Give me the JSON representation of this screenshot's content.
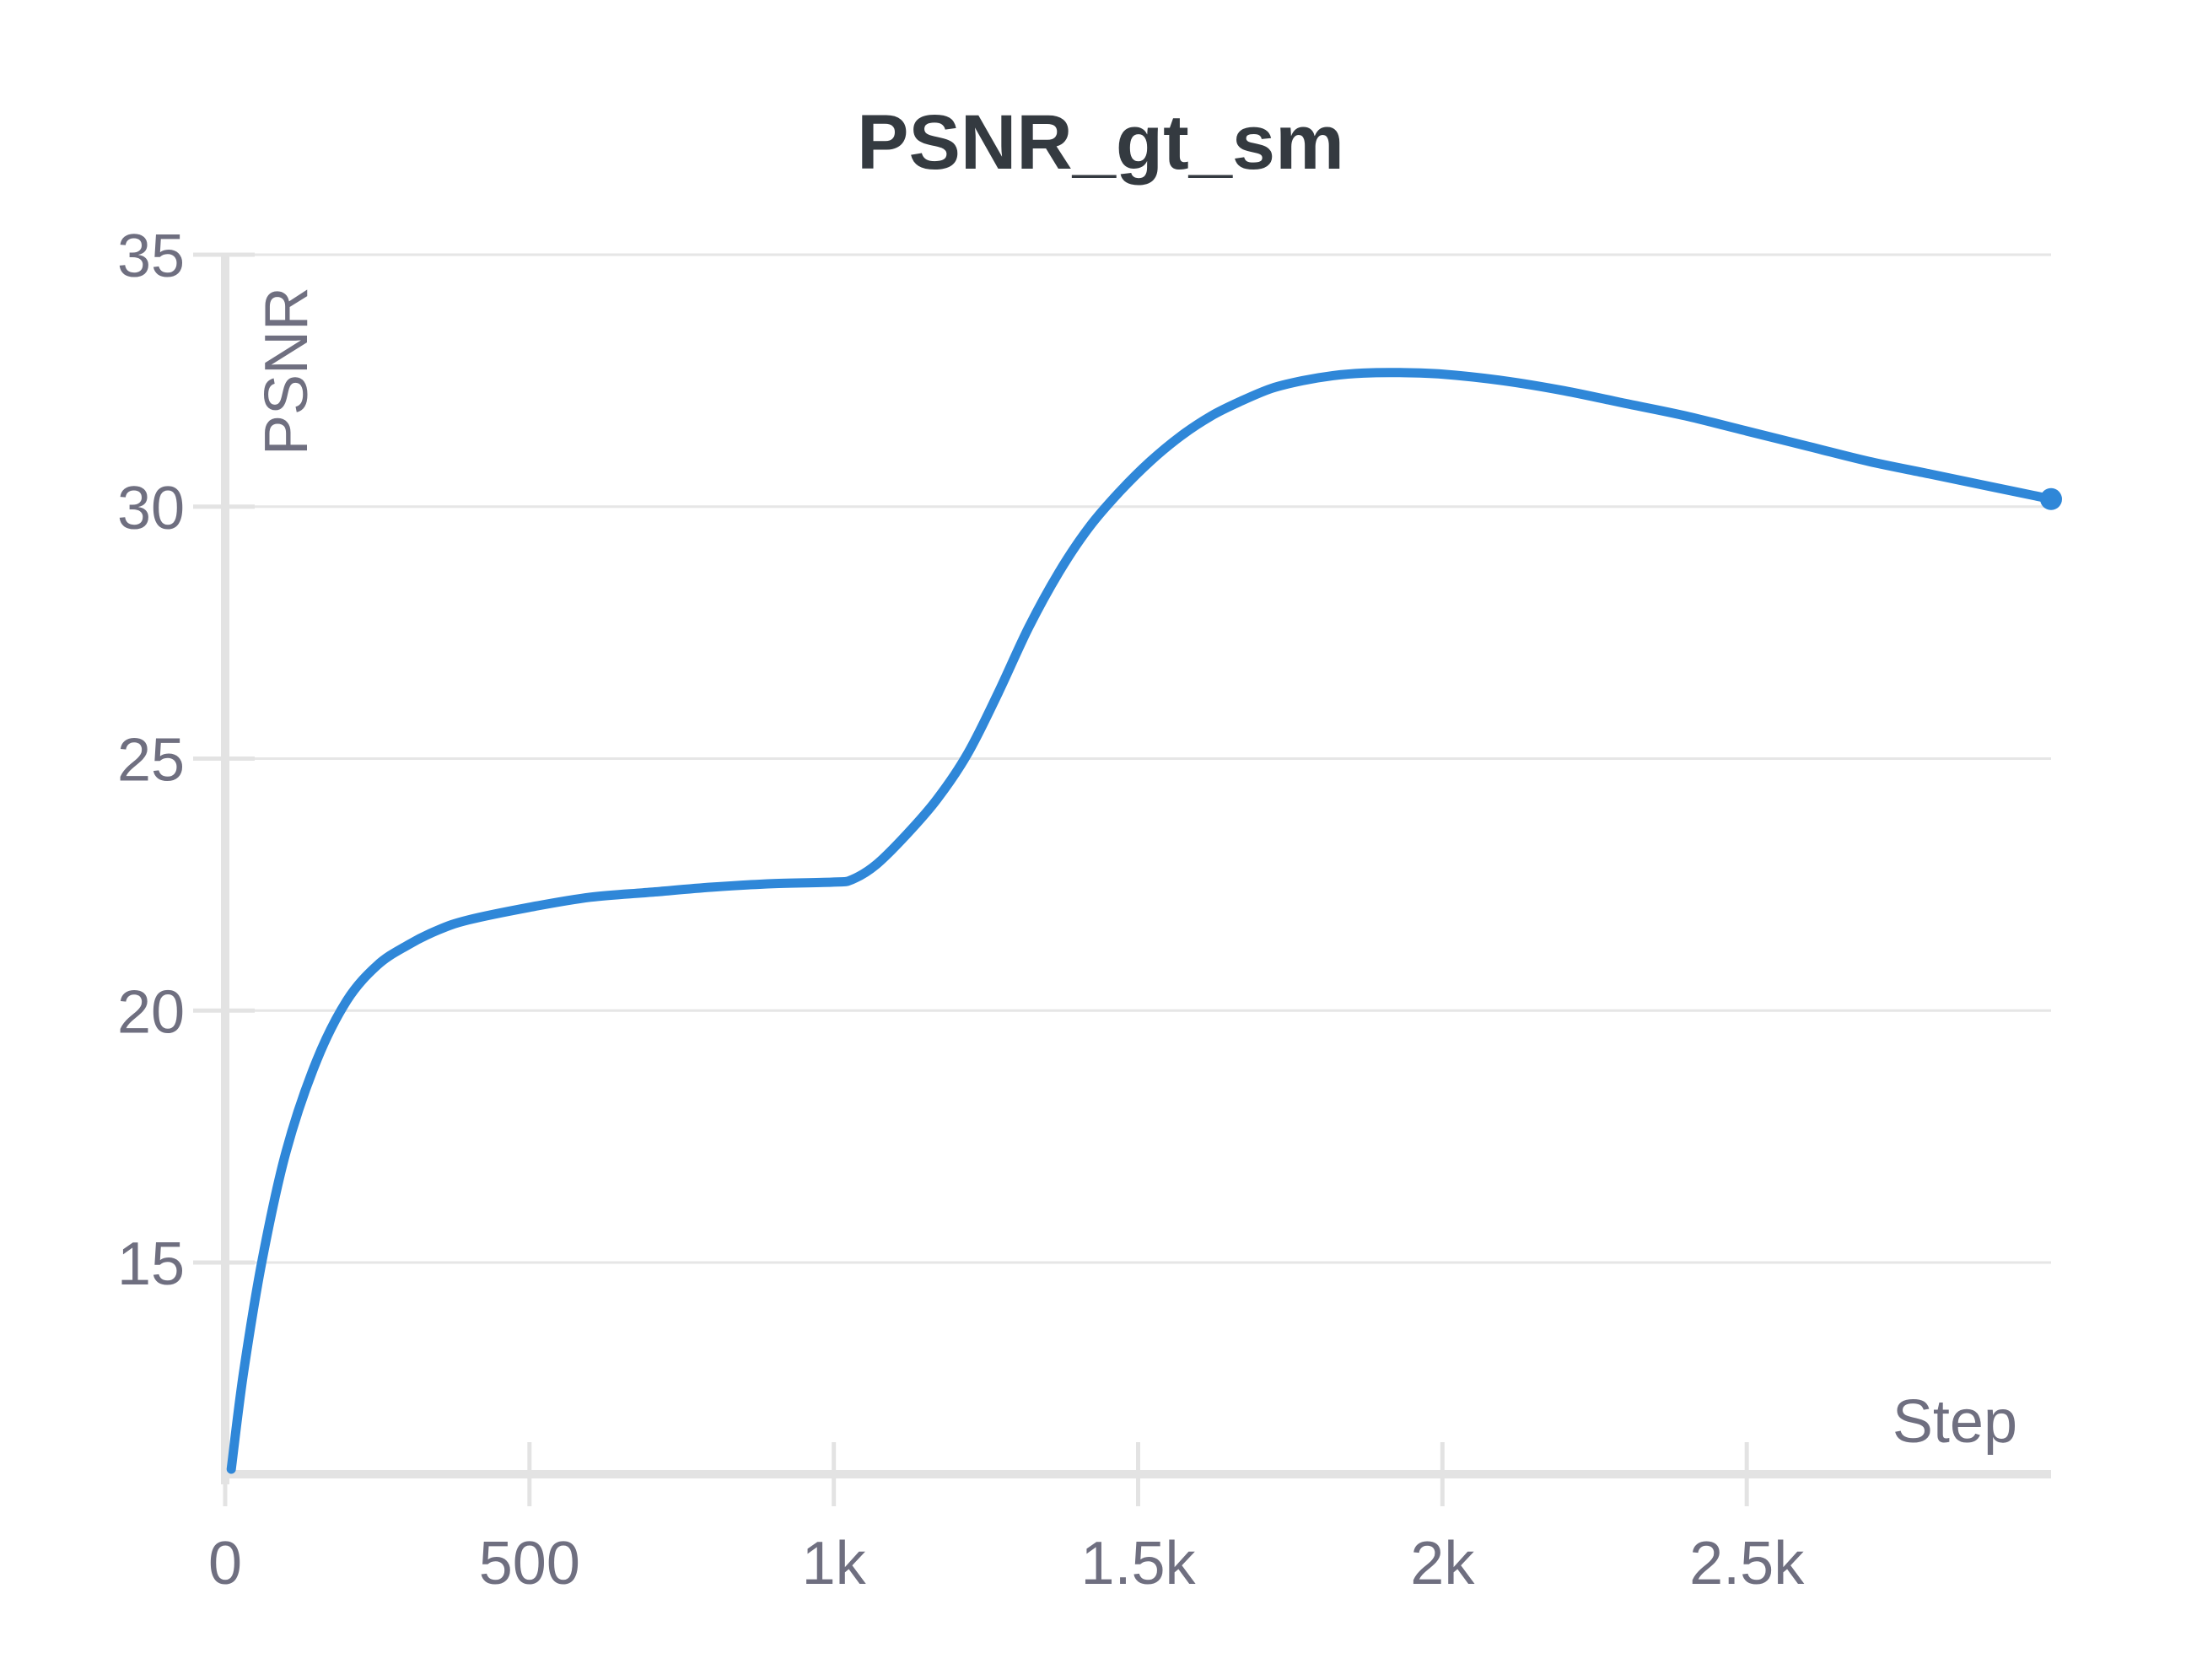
{
  "chart_data": {
    "type": "line",
    "title": "PSNR_gt_sm",
    "xlabel": "Step",
    "ylabel": "PSNR",
    "x_ticks": [
      {
        "value": 0,
        "label": "0"
      },
      {
        "value": 500,
        "label": "500"
      },
      {
        "value": 1000,
        "label": "1k"
      },
      {
        "value": 1500,
        "label": "1.5k"
      },
      {
        "value": 2000,
        "label": "2k"
      },
      {
        "value": 2500,
        "label": "2.5k"
      }
    ],
    "y_ticks": [
      {
        "value": 15,
        "label": "15"
      },
      {
        "value": 20,
        "label": "20"
      },
      {
        "value": 25,
        "label": "25"
      },
      {
        "value": 30,
        "label": "30"
      },
      {
        "value": 35,
        "label": "35"
      }
    ],
    "xlim": [
      0,
      3000
    ],
    "ylim": [
      10.8,
      35
    ],
    "grid": true,
    "series": [
      {
        "color": "#2f87d8",
        "x": [
          10,
          30,
          60,
          100,
          150,
          200,
          250,
          300,
          350,
          400,
          500,
          600,
          700,
          800,
          900,
          1000,
          1030,
          1070,
          1120,
          1170,
          1220,
          1270,
          1320,
          1370,
          1420,
          1470,
          1520,
          1570,
          1620,
          1670,
          1720,
          1770,
          1820,
          1870,
          1930,
          2000,
          2100,
          2200,
          2300,
          2400,
          2500,
          2600,
          2700,
          2800,
          2900,
          3000
        ],
        "y": [
          10.9,
          12.8,
          15.0,
          17.2,
          19.0,
          20.2,
          20.9,
          21.3,
          21.6,
          21.8,
          22.05,
          22.25,
          22.35,
          22.45,
          22.52,
          22.55,
          22.6,
          22.9,
          23.5,
          24.2,
          25.1,
          26.3,
          27.6,
          28.7,
          29.6,
          30.3,
          30.9,
          31.4,
          31.8,
          32.1,
          32.35,
          32.5,
          32.6,
          32.65,
          32.66,
          32.63,
          32.5,
          32.3,
          32.05,
          31.8,
          31.5,
          31.2,
          30.9,
          30.65,
          30.4,
          30.15
        ]
      }
    ]
  }
}
